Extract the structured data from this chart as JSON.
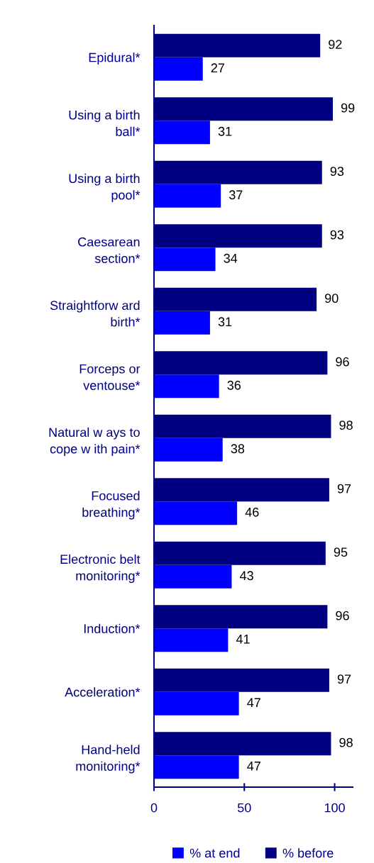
{
  "chart_data": {
    "type": "bar",
    "orientation": "horizontal",
    "categories": [
      "Epidural*",
      "Using a birth\nball*",
      "Using a birth\npool*",
      "Caesarean\nsection*",
      "Straightforw ard\nbirth*",
      "Forceps or\nventouse*",
      "Natural w ays to\ncope w ith pain*",
      "Focused\nbreathing*",
      "Electronic belt\nmonitoring*",
      "Induction*",
      "Acceleration*",
      "Hand-held\nmonitoring*"
    ],
    "series": [
      {
        "name": "% at end",
        "color": "#0000ff",
        "values": [
          27,
          31,
          37,
          34,
          31,
          36,
          38,
          46,
          43,
          41,
          47,
          47
        ]
      },
      {
        "name": "% before",
        "color": "#000080",
        "values": [
          92,
          99,
          93,
          93,
          90,
          96,
          98,
          97,
          95,
          96,
          97,
          98
        ]
      }
    ],
    "xlim": [
      0,
      110
    ],
    "xticks": [
      0,
      50,
      100
    ],
    "data_labels": true,
    "grid": false,
    "legend": "bottom"
  }
}
